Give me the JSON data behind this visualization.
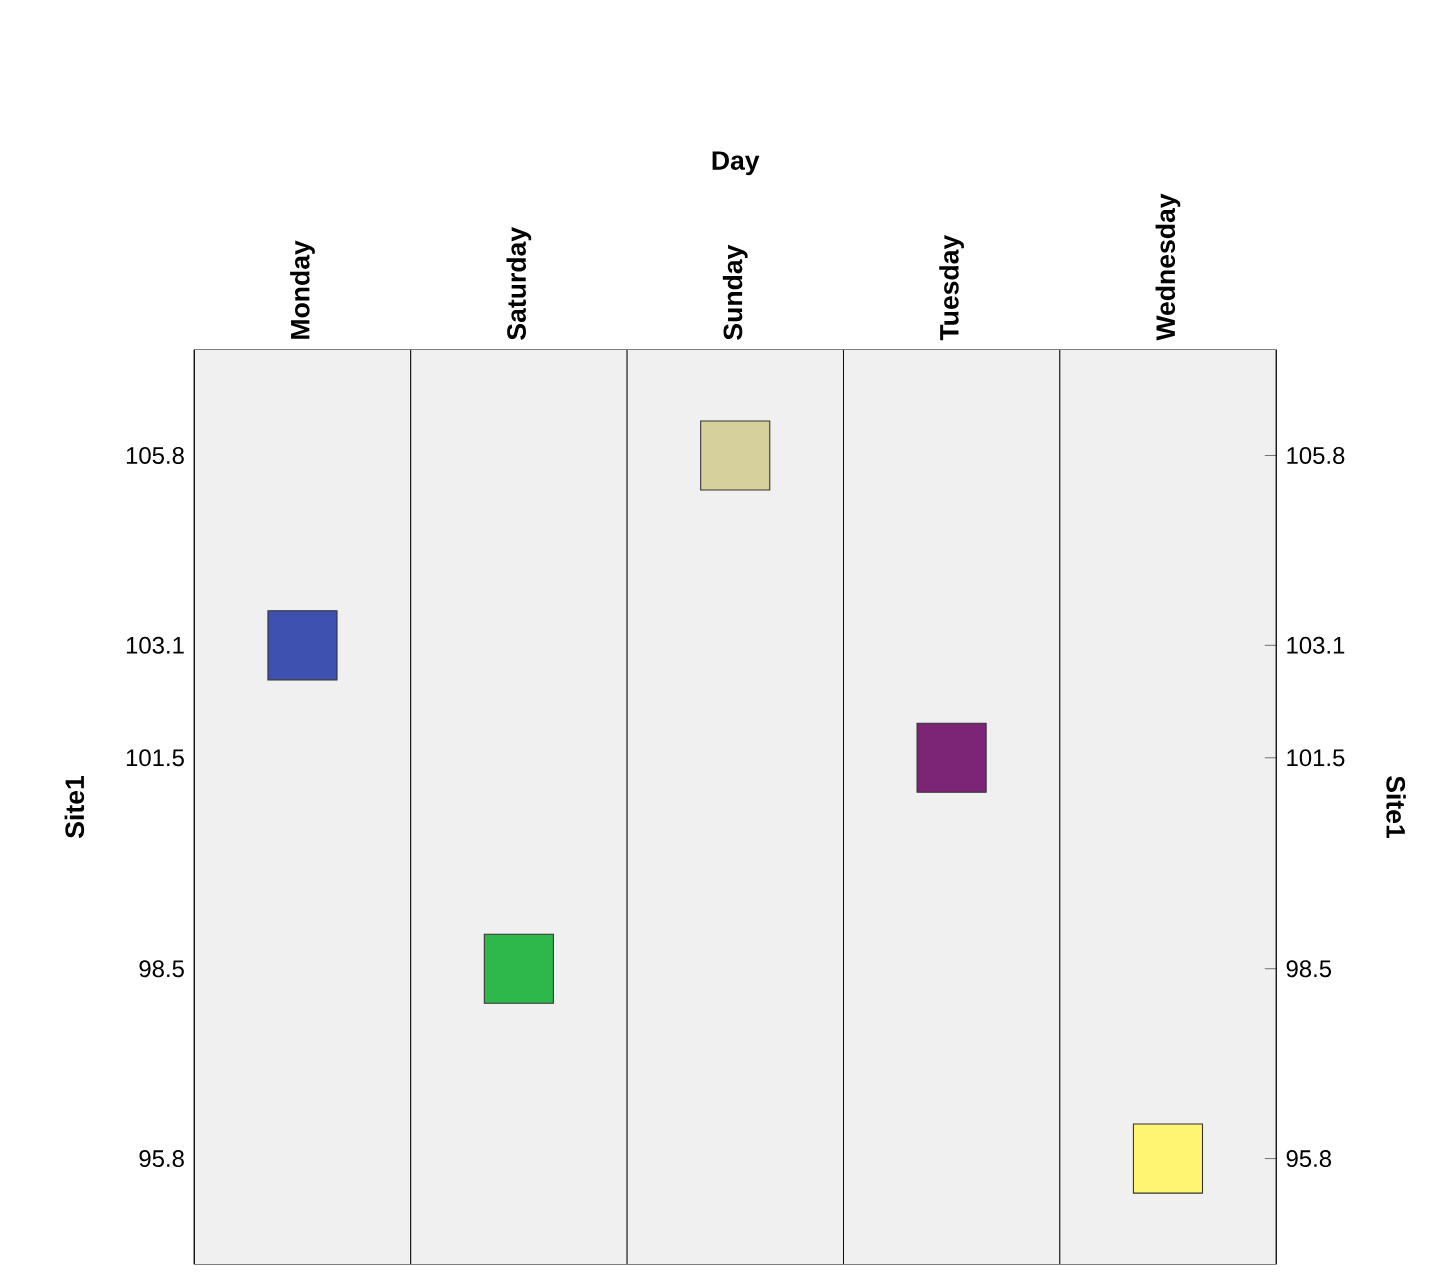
{
  "chart_data": {
    "type": "scatter",
    "xlabel": "Day",
    "ylabel": "Site1",
    "y2label": "Site1",
    "categories": [
      "Monday",
      "Saturday",
      "Sunday",
      "Tuesday",
      "Wednesday"
    ],
    "values": [
      103.1,
      98.5,
      105.8,
      101.5,
      95.8
    ],
    "colors": [
      "#3f51b0",
      "#2fb84a",
      "#d6d09c",
      "#7c2476",
      "#fff570"
    ],
    "marker": "square",
    "ylim": [
      94.3,
      107.3
    ],
    "yticks": [
      95.8,
      98.5,
      101.5,
      103.1,
      105.8
    ],
    "y2lim": [
      94.3,
      107.3
    ],
    "y2ticks": [
      95.8,
      98.5,
      101.5,
      103.1,
      105.8
    ]
  }
}
